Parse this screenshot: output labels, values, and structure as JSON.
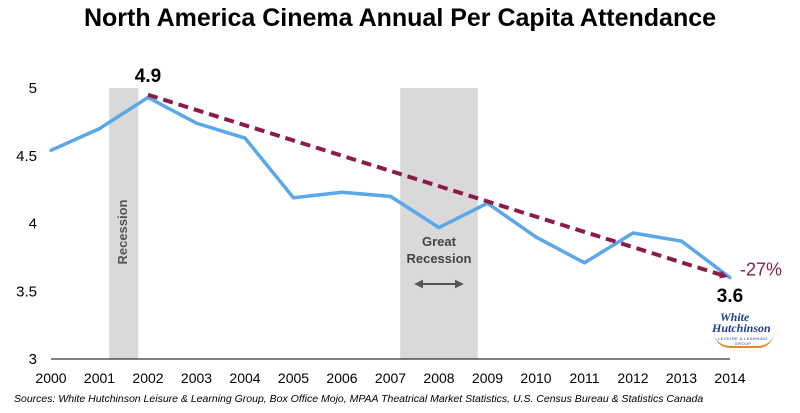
{
  "title": "North America Cinema Annual Per Capita Attendance",
  "sources": "Sources:  White Hutchinson Leisure & Learning Group, Box Office Mojo, MPAA Theatrical Market Statistics, U.S. Census Bureau & Statistics Canada",
  "logo": {
    "line1": "White",
    "line2": "Hutchinson",
    "line3": "LEISURE & LEARNING GROUP"
  },
  "chart_data": {
    "type": "line",
    "title": "North America Cinema Annual Per Capita Attendance",
    "xlabel": "",
    "ylabel": "",
    "x": [
      2000,
      2001,
      2002,
      2003,
      2004,
      2005,
      2006,
      2007,
      2008,
      2009,
      2010,
      2011,
      2012,
      2013,
      2014
    ],
    "series": [
      {
        "values": [
          4.54,
          4.7,
          4.93,
          4.74,
          4.63,
          4.19,
          4.23,
          4.2,
          3.97,
          4.15,
          3.9,
          3.71,
          3.93,
          3.87,
          3.6
        ],
        "color": "#5aa7ea"
      }
    ],
    "trend": {
      "x": [
        2002,
        2014
      ],
      "values": [
        4.95,
        3.61
      ],
      "color": "#8b1c4a",
      "label": "-27%"
    },
    "point_labels": [
      {
        "x": 2002,
        "text": "4.9"
      },
      {
        "x": 2014,
        "text": "3.6"
      }
    ],
    "shaded_regions": [
      {
        "x0": 2001.2,
        "x1": 2001.8,
        "label": "Recession"
      },
      {
        "x0": 2007.2,
        "x1": 2008.8,
        "label_line1": "Great",
        "label_line2": "Recession"
      }
    ],
    "ylim": [
      3,
      5
    ],
    "xlim": [
      2000,
      2014
    ],
    "yticks": [
      "3",
      "3.5",
      "4",
      "4.5",
      "5"
    ],
    "xticks": [
      "2000",
      "2001",
      "2002",
      "2003",
      "2004",
      "2005",
      "2006",
      "2007",
      "2008",
      "2009",
      "2010",
      "2011",
      "2012",
      "2013",
      "2014"
    ],
    "grid": false,
    "shade_color": "#d9d9d9"
  }
}
